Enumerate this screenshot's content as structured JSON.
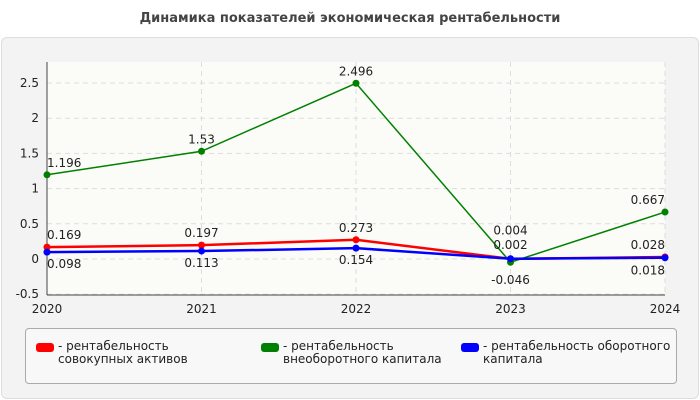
{
  "chart_data": {
    "type": "line",
    "title": "Динамика показателей экономическая рентабельности",
    "x": [
      "2020",
      "2021",
      "2022",
      "2023",
      "2024"
    ],
    "ylim": [
      -0.5,
      2.8
    ],
    "yticks": [
      "-0.5",
      "0",
      "0.5",
      "1",
      "1.5",
      "2",
      "2.5"
    ],
    "grid": true,
    "legend_position": "bottom",
    "series": [
      {
        "name": "- рентабельность совокупных активов",
        "color": "#ff0000",
        "values": [
          0.169,
          0.197,
          0.273,
          0.002,
          0.028
        ]
      },
      {
        "name": "- рентабельность внеоборотного капитала",
        "color": "#008000",
        "values": [
          1.196,
          1.53,
          2.496,
          -0.046,
          0.667
        ]
      },
      {
        "name": "- рентабельность оборотного капитала",
        "color": "#0000ff",
        "values": [
          0.098,
          0.113,
          0.154,
          0.004,
          0.018
        ]
      }
    ]
  }
}
